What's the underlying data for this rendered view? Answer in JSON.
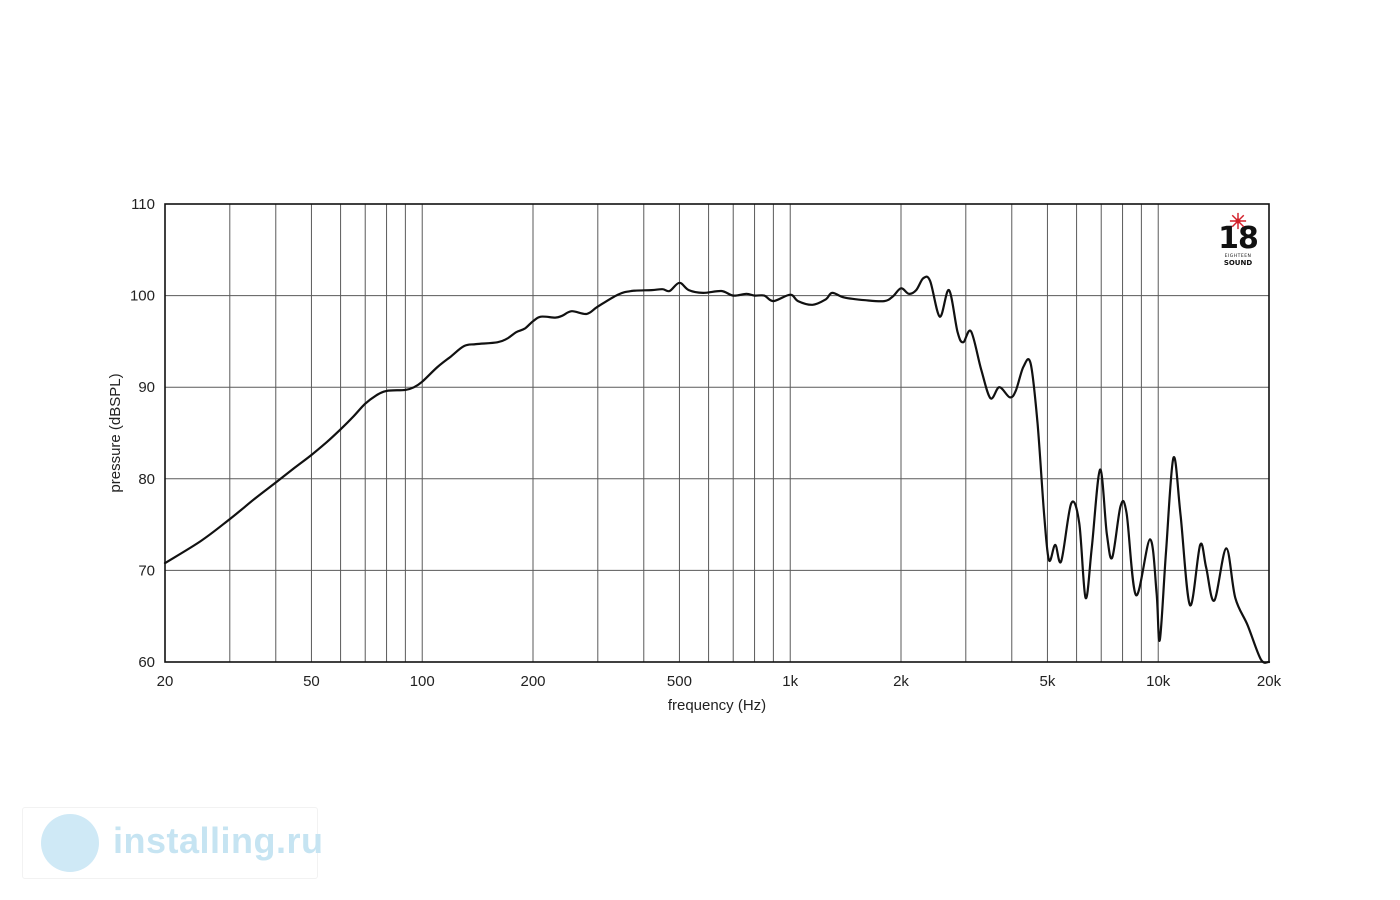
{
  "chart_data": {
    "type": "line",
    "title": "",
    "xlabel": "frequency (Hz)",
    "ylabel": "pressure (dBSPL)",
    "xscale": "log",
    "xlim": [
      20,
      20000
    ],
    "ylim": [
      60,
      110
    ],
    "grid": true,
    "xticks": [
      {
        "value": 20,
        "label": "20"
      },
      {
        "value": 50,
        "label": "50"
      },
      {
        "value": 100,
        "label": "100"
      },
      {
        "value": 200,
        "label": "200"
      },
      {
        "value": 500,
        "label": "500"
      },
      {
        "value": 1000,
        "label": "1k"
      },
      {
        "value": 2000,
        "label": "2k"
      },
      {
        "value": 5000,
        "label": "5k"
      },
      {
        "value": 10000,
        "label": "10k"
      },
      {
        "value": 20000,
        "label": "20k"
      }
    ],
    "yticks": [
      {
        "value": 60,
        "label": "60"
      },
      {
        "value": 70,
        "label": "70"
      },
      {
        "value": 80,
        "label": "80"
      },
      {
        "value": 90,
        "label": "90"
      },
      {
        "value": 100,
        "label": "100"
      },
      {
        "value": 110,
        "label": "110"
      }
    ],
    "series": [
      {
        "color": "#111111",
        "points": [
          [
            20,
            70.8
          ],
          [
            25,
            73.2
          ],
          [
            30,
            75.6
          ],
          [
            35,
            77.8
          ],
          [
            40,
            79.6
          ],
          [
            45,
            81.2
          ],
          [
            50,
            82.6
          ],
          [
            55,
            84.0
          ],
          [
            60,
            85.4
          ],
          [
            65,
            86.8
          ],
          [
            70,
            88.2
          ],
          [
            75,
            89.1
          ],
          [
            80,
            89.6
          ],
          [
            90,
            89.7
          ],
          [
            95,
            90.0
          ],
          [
            100,
            90.6
          ],
          [
            110,
            92.2
          ],
          [
            120,
            93.4
          ],
          [
            130,
            94.5
          ],
          [
            140,
            94.7
          ],
          [
            160,
            94.9
          ],
          [
            170,
            95.3
          ],
          [
            180,
            96.0
          ],
          [
            190,
            96.4
          ],
          [
            200,
            97.2
          ],
          [
            210,
            97.7
          ],
          [
            230,
            97.6
          ],
          [
            240,
            97.8
          ],
          [
            255,
            98.3
          ],
          [
            280,
            98.0
          ],
          [
            300,
            98.8
          ],
          [
            340,
            100.1
          ],
          [
            370,
            100.5
          ],
          [
            420,
            100.6
          ],
          [
            450,
            100.7
          ],
          [
            470,
            100.5
          ],
          [
            500,
            101.4
          ],
          [
            530,
            100.6
          ],
          [
            580,
            100.3
          ],
          [
            650,
            100.5
          ],
          [
            700,
            100.0
          ],
          [
            760,
            100.2
          ],
          [
            800,
            100.0
          ],
          [
            850,
            100.0
          ],
          [
            900,
            99.4
          ],
          [
            1000,
            100.1
          ],
          [
            1050,
            99.4
          ],
          [
            1150,
            99.0
          ],
          [
            1250,
            99.6
          ],
          [
            1300,
            100.3
          ],
          [
            1400,
            99.8
          ],
          [
            1600,
            99.5
          ],
          [
            1800,
            99.4
          ],
          [
            1900,
            99.9
          ],
          [
            2000,
            100.8
          ],
          [
            2100,
            100.2
          ],
          [
            2200,
            100.6
          ],
          [
            2300,
            101.9
          ],
          [
            2400,
            101.6
          ],
          [
            2550,
            97.7
          ],
          [
            2700,
            100.6
          ],
          [
            2850,
            96.0
          ],
          [
            2950,
            94.9
          ],
          [
            3100,
            96.1
          ],
          [
            3300,
            92.0
          ],
          [
            3500,
            88.8
          ],
          [
            3700,
            90.0
          ],
          [
            3950,
            88.9
          ],
          [
            4100,
            89.6
          ],
          [
            4300,
            92.2
          ],
          [
            4500,
            92.6
          ],
          [
            4700,
            86.0
          ],
          [
            4900,
            76.0
          ],
          [
            5050,
            71.1
          ],
          [
            5250,
            72.8
          ],
          [
            5450,
            71.0
          ],
          [
            5800,
            77.3
          ],
          [
            6100,
            75.2
          ],
          [
            6350,
            67.0
          ],
          [
            6600,
            72.5
          ],
          [
            6950,
            81.0
          ],
          [
            7250,
            74.0
          ],
          [
            7500,
            71.4
          ],
          [
            7900,
            77.0
          ],
          [
            8200,
            76.3
          ],
          [
            8700,
            67.3
          ],
          [
            9500,
            73.4
          ],
          [
            9900,
            67.5
          ],
          [
            10100,
            62.4
          ],
          [
            10500,
            72.0
          ],
          [
            11000,
            82.3
          ],
          [
            11500,
            76.0
          ],
          [
            12200,
            66.2
          ],
          [
            13000,
            72.8
          ],
          [
            13500,
            70.3
          ],
          [
            14200,
            66.7
          ],
          [
            15300,
            72.4
          ],
          [
            16200,
            67.0
          ],
          [
            17500,
            64.0
          ],
          [
            19000,
            60.3
          ],
          [
            20000,
            60.0
          ]
        ]
      }
    ]
  },
  "logo": {
    "number": "18",
    "line1": "EIGHTEEN",
    "line2": "SOUND",
    "star_color": "#d2202a"
  },
  "watermark": {
    "text": "installing.ru",
    "color": "#c6e4f2"
  }
}
